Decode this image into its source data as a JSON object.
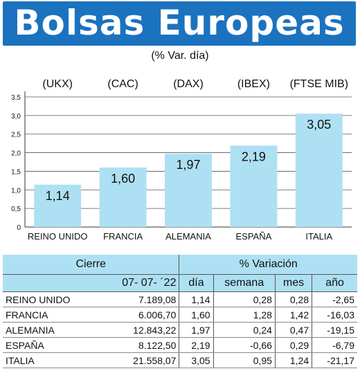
{
  "header": {
    "title": "Bolsas Europeas",
    "subtitle": "(% Var. día)"
  },
  "chart_data": {
    "type": "bar",
    "title": "Bolsas Europeas",
    "subtitle": "(% Var. día)",
    "index_labels": [
      "(UKX)",
      "(CAC)",
      "(DAX)",
      "(IBEX)",
      "(FTSE MIB)"
    ],
    "categories": [
      "REINO UNIDO",
      "FRANCIA",
      "ALEMANIA",
      "ESPAÑA",
      "ITALIA"
    ],
    "values": [
      1.14,
      1.6,
      1.97,
      2.19,
      3.05
    ],
    "value_labels": [
      "1,14",
      "1,60",
      "1,97",
      "2,19",
      "3,05"
    ],
    "yticks": [
      "0",
      "0,5",
      "1,0",
      "1,5",
      "2,0",
      "2,5",
      "3,0",
      "3,5"
    ],
    "ylim": [
      0,
      3.5
    ],
    "grid": true,
    "bar_color": "#aee0f3"
  },
  "table": {
    "group_headers": {
      "close": "Cierre",
      "variation": "% Variación"
    },
    "date": "07- 07- ´22",
    "columns": [
      "día",
      "semana",
      "mes",
      "año"
    ],
    "rows": [
      {
        "name": "REINO UNIDO",
        "close": "7.189,08",
        "dia": "1,14",
        "semana": "0,28",
        "mes": "0,28",
        "ano": "-2,65"
      },
      {
        "name": "FRANCIA",
        "close": "6.006,70",
        "dia": "1,60",
        "semana": "1,28",
        "mes": "1,42",
        "ano": "-16,03"
      },
      {
        "name": "ALEMANIA",
        "close": "12.843,22",
        "dia": "1,97",
        "semana": "0,24",
        "mes": "0,47",
        "ano": "-19,15"
      },
      {
        "name": "ESPAÑA",
        "close": "8.122,50",
        "dia": "2,19",
        "semana": "-0,66",
        "mes": "0,29",
        "ano": "-6,79"
      },
      {
        "name": "ITALIA",
        "close": "21.558,07",
        "dia": "3,05",
        "semana": "0,95",
        "mes": "1,24",
        "ano": "-21,17"
      }
    ]
  },
  "colors": {
    "banner": "#1b72bf",
    "bar": "#aee0f3"
  }
}
